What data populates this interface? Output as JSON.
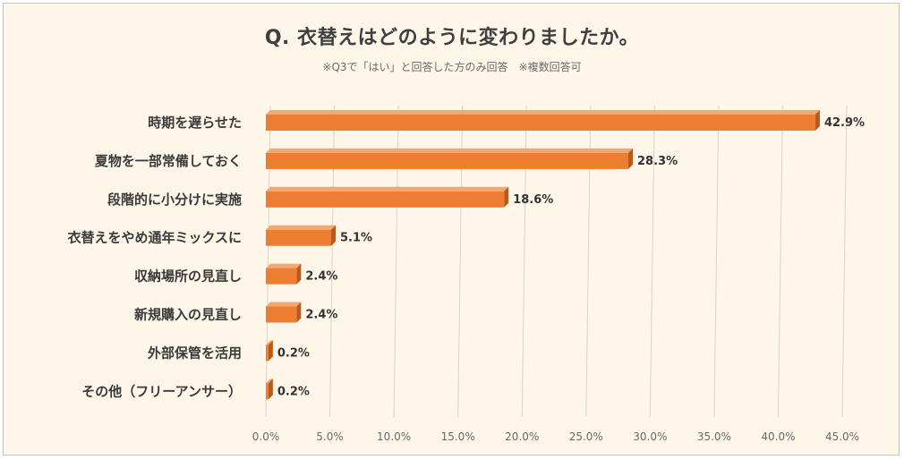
{
  "chart_data": {
    "type": "bar",
    "orientation": "horizontal",
    "title": "Q. 衣替えはどのように変わりましたか。",
    "subtitle": "※Q3で「はい」と回答した方のみ回答　※複数回答可",
    "categories": [
      "時期を遅らせた",
      "夏物を一部常備しておく",
      "段階的に小分けに実施",
      "衣替えをやめ通年ミックスに",
      "収納場所の見直し",
      "新規購入の見直し",
      "外部保管を活用",
      "その他（フリーアンサー）"
    ],
    "values": [
      42.9,
      28.3,
      18.6,
      5.1,
      2.4,
      2.4,
      0.2,
      0.2
    ],
    "value_labels": [
      "42.9%",
      "28.3%",
      "18.6%",
      "5.1%",
      "2.4%",
      "2.4%",
      "0.2%",
      "0.2%"
    ],
    "xlim": [
      0,
      45
    ],
    "x_ticks": [
      0,
      5,
      10,
      15,
      20,
      25,
      30,
      35,
      40,
      45
    ],
    "x_tick_labels": [
      "0.0%",
      "5.0%",
      "10.0%",
      "15.0%",
      "20.0%",
      "25.0%",
      "30.0%",
      "35.0%",
      "40.0%",
      "45.0%"
    ],
    "grid": "vertical",
    "legend": "none",
    "colors": {
      "bar": "#ed7d31",
      "bar_top": "#f4a772",
      "bar_side": "#b85a1b",
      "grid": "#d9d4c9",
      "background": "#fdf6e9"
    }
  }
}
